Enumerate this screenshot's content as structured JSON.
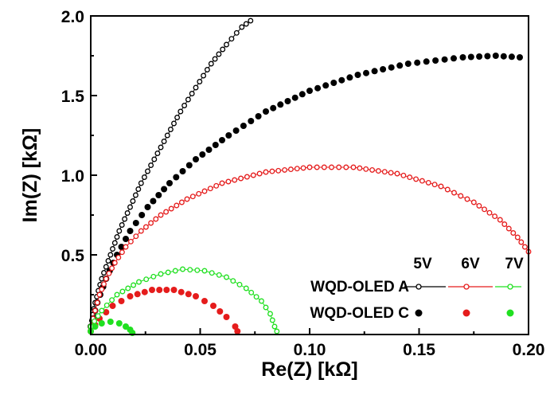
{
  "chart_data": {
    "type": "scatter",
    "xlabel": "Re(Z) [kΩ]",
    "ylabel": "Im(Z) [kΩ]",
    "xlim": [
      0.0,
      0.2
    ],
    "ylim": [
      0.0,
      2.0
    ],
    "x_ticks": [
      "0.00",
      "0.05",
      "0.10",
      "0.15",
      "0.20"
    ],
    "y_ticks": [
      "0.5",
      "1.0",
      "1.5",
      "2.0"
    ],
    "grid": false,
    "legend_position": "bottom-right",
    "legend": {
      "voltages": [
        "5V",
        "6V",
        "7V"
      ],
      "rows": [
        "WQD-OLED A",
        "WQD-OLED C"
      ]
    },
    "series": [
      {
        "device": "WQD-OLED A",
        "voltage": "5V",
        "marker": "open",
        "line": true,
        "color": "#000000",
        "points": [
          [
            0.0,
            0.05
          ],
          [
            0.002,
            0.2
          ],
          [
            0.005,
            0.35
          ],
          [
            0.009,
            0.5
          ],
          [
            0.013,
            0.65
          ],
          [
            0.018,
            0.8
          ],
          [
            0.023,
            0.95
          ],
          [
            0.029,
            1.1
          ],
          [
            0.035,
            1.25
          ],
          [
            0.041,
            1.4
          ],
          [
            0.048,
            1.55
          ],
          [
            0.055,
            1.7
          ],
          [
            0.062,
            1.82
          ],
          [
            0.069,
            1.93
          ],
          [
            0.073,
            1.97
          ]
        ]
      },
      {
        "device": "WQD-OLED C",
        "voltage": "5V",
        "marker": "filled",
        "line": false,
        "color": "#000000",
        "points": [
          [
            0.0,
            0.05
          ],
          [
            0.003,
            0.2
          ],
          [
            0.007,
            0.35
          ],
          [
            0.012,
            0.5
          ],
          [
            0.018,
            0.65
          ],
          [
            0.026,
            0.8
          ],
          [
            0.036,
            0.95
          ],
          [
            0.048,
            1.1
          ],
          [
            0.063,
            1.25
          ],
          [
            0.08,
            1.4
          ],
          [
            0.1,
            1.53
          ],
          [
            0.122,
            1.63
          ],
          [
            0.145,
            1.7
          ],
          [
            0.17,
            1.74
          ],
          [
            0.185,
            1.75
          ],
          [
            0.196,
            1.74
          ]
        ]
      },
      {
        "device": "WQD-OLED A",
        "voltage": "6V",
        "marker": "open",
        "line": true,
        "color": "#e51c1c",
        "points": [
          [
            0.0,
            0.05
          ],
          [
            0.002,
            0.15
          ],
          [
            0.004,
            0.25
          ],
          [
            0.007,
            0.35
          ],
          [
            0.011,
            0.45
          ],
          [
            0.016,
            0.55
          ],
          [
            0.023,
            0.65
          ],
          [
            0.032,
            0.75
          ],
          [
            0.044,
            0.85
          ],
          [
            0.06,
            0.95
          ],
          [
            0.08,
            1.02
          ],
          [
            0.1,
            1.05
          ],
          [
            0.12,
            1.05
          ],
          [
            0.14,
            1.01
          ],
          [
            0.16,
            0.93
          ],
          [
            0.175,
            0.83
          ],
          [
            0.187,
            0.72
          ],
          [
            0.195,
            0.61
          ],
          [
            0.2,
            0.52
          ]
        ]
      },
      {
        "device": "WQD-OLED C",
        "voltage": "6V",
        "marker": "filled",
        "line": false,
        "color": "#e51c1c",
        "points": [
          [
            0.0,
            0.02
          ],
          [
            0.004,
            0.1
          ],
          [
            0.01,
            0.18
          ],
          [
            0.018,
            0.24
          ],
          [
            0.028,
            0.28
          ],
          [
            0.038,
            0.28
          ],
          [
            0.048,
            0.24
          ],
          [
            0.056,
            0.18
          ],
          [
            0.062,
            0.11
          ],
          [
            0.066,
            0.05
          ],
          [
            0.067,
            0.02
          ]
        ]
      },
      {
        "device": "WQD-OLED A",
        "voltage": "7V",
        "marker": "open",
        "line": true,
        "color": "#20e020",
        "points": [
          [
            0.0,
            0.05
          ],
          [
            0.005,
            0.15
          ],
          [
            0.012,
            0.25
          ],
          [
            0.022,
            0.33
          ],
          [
            0.032,
            0.38
          ],
          [
            0.042,
            0.41
          ],
          [
            0.052,
            0.4
          ],
          [
            0.062,
            0.36
          ],
          [
            0.071,
            0.29
          ],
          [
            0.078,
            0.21
          ],
          [
            0.082,
            0.13
          ],
          [
            0.084,
            0.05
          ],
          [
            0.085,
            0.02
          ]
        ]
      },
      {
        "device": "WQD-OLED C",
        "voltage": "7V",
        "marker": "filled",
        "line": false,
        "color": "#20e020",
        "points": [
          [
            0.0,
            0.02
          ],
          [
            0.002,
            0.05
          ],
          [
            0.005,
            0.07
          ],
          [
            0.009,
            0.08
          ],
          [
            0.013,
            0.07
          ],
          [
            0.016,
            0.05
          ],
          [
            0.018,
            0.03
          ],
          [
            0.019,
            0.01
          ]
        ]
      }
    ]
  }
}
